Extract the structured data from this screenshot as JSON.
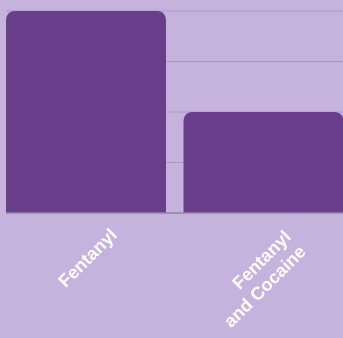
{
  "chart_data": {
    "type": "bar",
    "categories": [
      "Fentanyl",
      "Fentanyl\nand Cocaine"
    ],
    "values": [
      100,
      50
    ],
    "ylim": [
      0,
      100
    ],
    "grid": true,
    "colors": {
      "background": "#c5b3dd",
      "bar": "#693e8b",
      "grid": "#a998be",
      "baseline": "#9484aa",
      "label": "#ffffff"
    }
  }
}
